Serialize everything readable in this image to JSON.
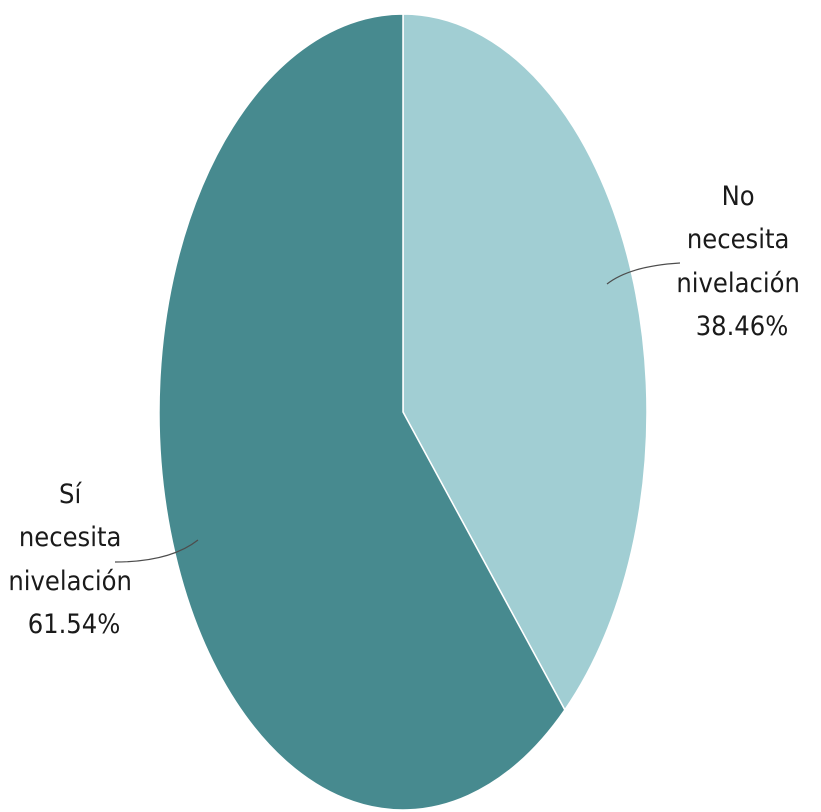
{
  "chart_data": {
    "type": "pie",
    "title": "",
    "slices": [
      {
        "category": "No necesita nivelación",
        "label_lines": [
          "No",
          "necesita",
          "nivelación"
        ],
        "value": 38.46,
        "value_label": "38.46%",
        "color": "#a1ced3"
      },
      {
        "category": "Sí necesita nivelación",
        "label_lines": [
          "Sí",
          "necesita",
          "nivelación"
        ],
        "value": 61.54,
        "value_label": "61.54%",
        "color": "#478a8f"
      }
    ],
    "start_angle": "12 o'clock",
    "direction": "clockwise",
    "legend": "none"
  }
}
